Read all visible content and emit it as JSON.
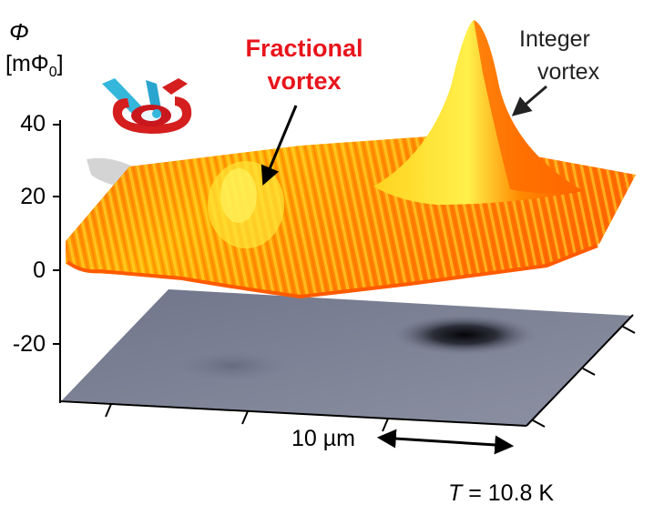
{
  "figure": {
    "y_symbol": "Φ",
    "y_unit_prefix": "[mΦ",
    "y_unit_sub": "0",
    "y_unit_suffix": "]",
    "y_ticks": [
      "40",
      "20",
      "0",
      "-20"
    ],
    "annotation_fractional": {
      "line1": "Fractional",
      "line2": "vortex"
    },
    "annotation_integer": {
      "line1": "Integer",
      "line2": "vortex"
    },
    "scale_bar": "10 µm",
    "temperature_symbol": "T",
    "temperature_value": " = 10.8 K"
  },
  "chart_data": {
    "type": "surface",
    "y_ticks": [
      40,
      20,
      0,
      -20
    ],
    "surface_colors": [
      "#ff6a00",
      "#ff9d00",
      "#ffd000",
      "#ffee33"
    ],
    "projection_colors": [
      "#7a7f92",
      "#0a0a12"
    ]
  }
}
